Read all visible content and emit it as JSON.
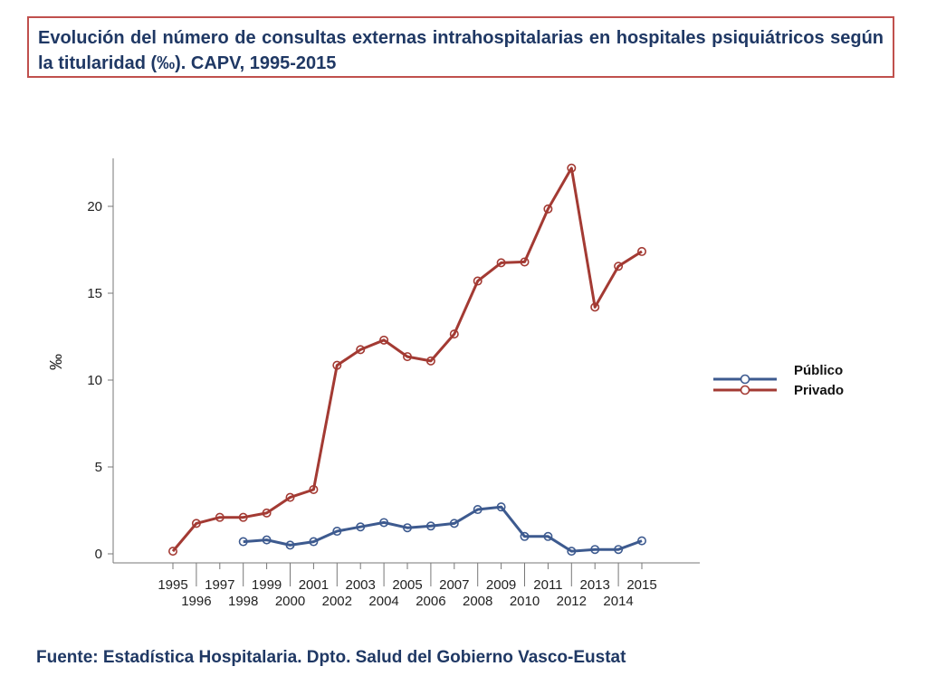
{
  "header": {
    "title": "Evolución del número de consultas externas intrahospitalarias en hospitales psiquiátricos según la titularidad (‰). CAPV, 1995-2015"
  },
  "footer": {
    "source": "Fuente: Estadística Hospitalaria. Dpto. Salud del Gobierno Vasco-Eustat"
  },
  "colors": {
    "title_border": "#c0504d",
    "title_text": "#1f3864",
    "publico": "#3d5a8f",
    "privado": "#a33a33"
  },
  "chart_data": {
    "type": "line",
    "ylabel": "‰",
    "xlabel": "",
    "ylim": [
      0,
      22.5
    ],
    "xlim": [
      1995,
      2015
    ],
    "yticks": [
      0,
      5,
      10,
      15,
      20
    ],
    "xticks": [
      1995,
      1996,
      1997,
      1998,
      1999,
      2000,
      2001,
      2002,
      2003,
      2004,
      2005,
      2006,
      2007,
      2008,
      2009,
      2010,
      2011,
      2012,
      2013,
      2014,
      2015
    ],
    "grid": false,
    "legend_position": "right",
    "series": [
      {
        "name": "Público",
        "color": "#3d5a8f",
        "x": [
          1998,
          1999,
          2000,
          2001,
          2002,
          2003,
          2004,
          2005,
          2006,
          2007,
          2008,
          2009,
          2010,
          2011,
          2012,
          2013,
          2014,
          2015
        ],
        "values": [
          0.7,
          0.8,
          0.5,
          0.7,
          1.3,
          1.55,
          1.8,
          1.5,
          1.6,
          1.75,
          2.55,
          2.7,
          1.0,
          1.0,
          0.15,
          0.25,
          0.25,
          0.75
        ]
      },
      {
        "name": "Privado",
        "color": "#a33a33",
        "x": [
          1995,
          1996,
          1997,
          1998,
          1999,
          2000,
          2001,
          2002,
          2003,
          2004,
          2005,
          2006,
          2007,
          2008,
          2009,
          2010,
          2011,
          2012,
          2013,
          2014,
          2015
        ],
        "values": [
          0.15,
          1.75,
          2.1,
          2.1,
          2.35,
          3.25,
          3.7,
          10.85,
          11.75,
          12.3,
          11.35,
          11.1,
          12.65,
          15.7,
          16.75,
          16.8,
          19.85,
          22.2,
          14.2,
          16.55,
          17.4
        ]
      }
    ]
  }
}
